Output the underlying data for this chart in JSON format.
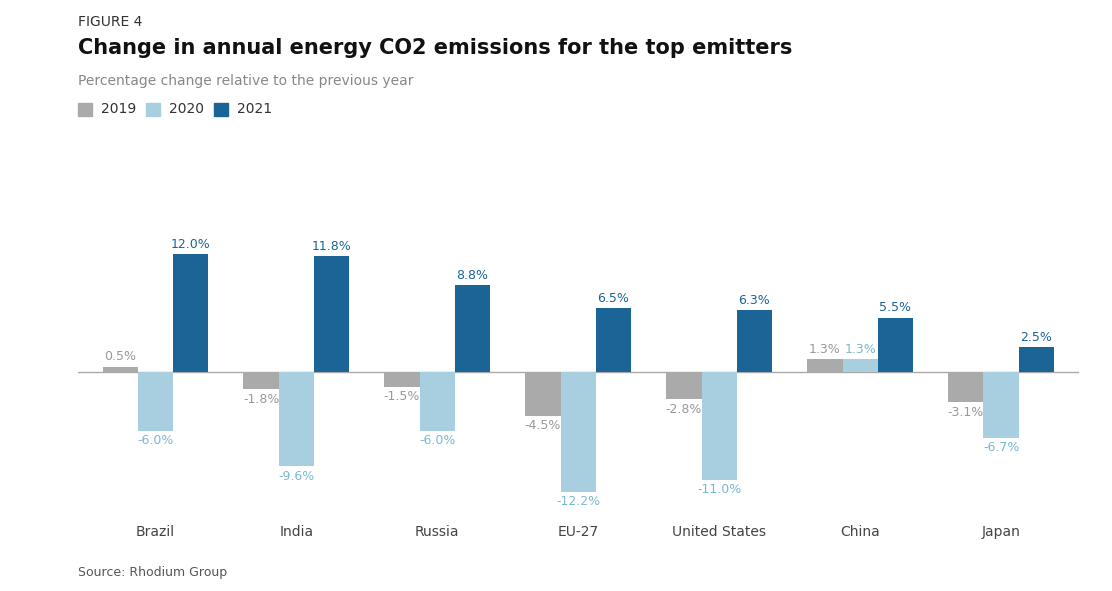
{
  "figure_label": "FIGURE 4",
  "title": "Change in annual energy CO2 emissions for the top emitters",
  "subtitle": "Percentage change relative to the previous year",
  "source": "Source: Rhodium Group",
  "categories": [
    "Brazil",
    "India",
    "Russia",
    "EU-27",
    "United States",
    "China",
    "Japan"
  ],
  "series": {
    "2019": [
      0.5,
      -1.8,
      -1.5,
      -4.5,
      -2.8,
      1.3,
      -3.1
    ],
    "2020": [
      -6.0,
      -9.6,
      -6.0,
      -12.2,
      -11.0,
      1.3,
      -6.7
    ],
    "2021": [
      12.0,
      11.8,
      8.8,
      6.5,
      6.3,
      5.5,
      2.5
    ]
  },
  "colors": {
    "2019": "#aaaaaa",
    "2020": "#a8cfe0",
    "2021": "#1a6496"
  },
  "bar_width": 0.25,
  "ylim": [
    -14.5,
    15
  ],
  "annotation_color_2019": "#999999",
  "annotation_color_2020": "#7ab8d4",
  "annotation_color_2021": "#1a6496",
  "background_color": "#ffffff",
  "title_fontsize": 15,
  "subtitle_fontsize": 10,
  "figure_label_fontsize": 10,
  "source_fontsize": 9,
  "ann_fontsize": 9,
  "xtick_fontsize": 10
}
